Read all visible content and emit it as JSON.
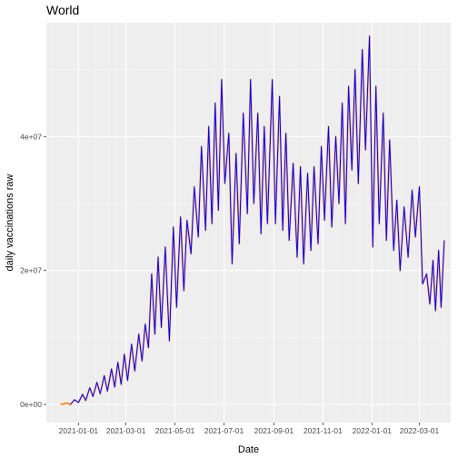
{
  "chart_data": {
    "type": "line",
    "title": "World",
    "xlabel": "Date",
    "ylabel": "daily vaccinations raw",
    "x_tick_labels": [
      "2021-01-01",
      "2021-03-01",
      "2021-05-01",
      "2021-07-01",
      "2021-09-01",
      "2021-11-01",
      "2022-01-01",
      "2022-03-01"
    ],
    "y_tick_labels": [
      "0e+00",
      "2e+07",
      "4e+07"
    ],
    "y_ticks": [
      0,
      20000000,
      40000000
    ],
    "xlim": [
      "2020-11-22",
      "2022-04-09"
    ],
    "ylim": [
      -2700000,
      57000000
    ],
    "grid": true,
    "legend": "none",
    "series": [
      {
        "color": "#0000ff",
        "points": [
          [
            "2020-12-10",
            0
          ],
          [
            "2020-12-18",
            200000
          ],
          [
            "2020-12-22",
            0
          ],
          [
            "2020-12-27",
            700000
          ],
          [
            "2021-01-01",
            300000
          ],
          [
            "2021-01-06",
            1500000
          ],
          [
            "2021-01-10",
            600000
          ],
          [
            "2021-01-15",
            2500000
          ],
          [
            "2021-01-19",
            1200000
          ],
          [
            "2021-01-24",
            3300000
          ],
          [
            "2021-01-28",
            1600000
          ],
          [
            "2021-02-02",
            4300000
          ],
          [
            "2021-02-06",
            2000000
          ],
          [
            "2021-02-11",
            5300000
          ],
          [
            "2021-02-15",
            2600000
          ],
          [
            "2021-02-19",
            6300000
          ],
          [
            "2021-02-23",
            3000000
          ],
          [
            "2021-02-27",
            7500000
          ],
          [
            "2021-03-03",
            3600000
          ],
          [
            "2021-03-08",
            9000000
          ],
          [
            "2021-03-12",
            5000000
          ],
          [
            "2021-03-17",
            10500000
          ],
          [
            "2021-03-21",
            6500000
          ],
          [
            "2021-03-25",
            12000000
          ],
          [
            "2021-03-29",
            8500000
          ],
          [
            "2021-04-02",
            19500000
          ],
          [
            "2021-04-06",
            10500000
          ],
          [
            "2021-04-10",
            22000000
          ],
          [
            "2021-04-14",
            11500000
          ],
          [
            "2021-04-19",
            23500000
          ],
          [
            "2021-04-24",
            9500000
          ],
          [
            "2021-04-29",
            26500000
          ],
          [
            "2021-05-03",
            14500000
          ],
          [
            "2021-05-08",
            28000000
          ],
          [
            "2021-05-12",
            17000000
          ],
          [
            "2021-05-16",
            27500000
          ],
          [
            "2021-05-21",
            22500000
          ],
          [
            "2021-05-25",
            32500000
          ],
          [
            "2021-05-30",
            25000000
          ],
          [
            "2021-06-03",
            38500000
          ],
          [
            "2021-06-08",
            26000000
          ],
          [
            "2021-06-12",
            41500000
          ],
          [
            "2021-06-16",
            27000000
          ],
          [
            "2021-06-20",
            45000000
          ],
          [
            "2021-06-24",
            29000000
          ],
          [
            "2021-06-28",
            48500000
          ],
          [
            "2021-07-02",
            33000000
          ],
          [
            "2021-07-07",
            40500000
          ],
          [
            "2021-07-11",
            21000000
          ],
          [
            "2021-07-16",
            37500000
          ],
          [
            "2021-07-20",
            24000000
          ],
          [
            "2021-07-25",
            43500000
          ],
          [
            "2021-07-30",
            28500000
          ],
          [
            "2021-08-03",
            48500000
          ],
          [
            "2021-08-07",
            30000000
          ],
          [
            "2021-08-12",
            43500000
          ],
          [
            "2021-08-16",
            25500000
          ],
          [
            "2021-08-20",
            41500000
          ],
          [
            "2021-08-24",
            27000000
          ],
          [
            "2021-08-30",
            48500000
          ],
          [
            "2021-09-03",
            27000000
          ],
          [
            "2021-09-08",
            46000000
          ],
          [
            "2021-09-12",
            26000000
          ],
          [
            "2021-09-16",
            40500000
          ],
          [
            "2021-09-20",
            24500000
          ],
          [
            "2021-09-25",
            36000000
          ],
          [
            "2021-09-30",
            22000000
          ],
          [
            "2021-10-04",
            35500000
          ],
          [
            "2021-10-08",
            21000000
          ],
          [
            "2021-10-13",
            34500000
          ],
          [
            "2021-10-17",
            23000000
          ],
          [
            "2021-10-21",
            35500000
          ],
          [
            "2021-10-26",
            24000000
          ],
          [
            "2021-10-30",
            38500000
          ],
          [
            "2021-11-03",
            27500000
          ],
          [
            "2021-11-08",
            41500000
          ],
          [
            "2021-11-12",
            26500000
          ],
          [
            "2021-11-17",
            40000000
          ],
          [
            "2021-11-21",
            30000000
          ],
          [
            "2021-11-25",
            45000000
          ],
          [
            "2021-11-29",
            27000000
          ],
          [
            "2021-12-03",
            47500000
          ],
          [
            "2021-12-07",
            35000000
          ],
          [
            "2021-12-11",
            50000000
          ],
          [
            "2021-12-15",
            33000000
          ],
          [
            "2021-12-20",
            53000000
          ],
          [
            "2021-12-24",
            38000000
          ],
          [
            "2021-12-29",
            55000000
          ],
          [
            "2022-01-02",
            23500000
          ],
          [
            "2022-01-06",
            47500000
          ],
          [
            "2022-01-10",
            27000000
          ],
          [
            "2022-01-15",
            43500000
          ],
          [
            "2022-01-19",
            24500000
          ],
          [
            "2022-01-23",
            39500000
          ],
          [
            "2022-01-28",
            23000000
          ],
          [
            "2022-02-01",
            30500000
          ],
          [
            "2022-02-05",
            20000000
          ],
          [
            "2022-02-10",
            29500000
          ],
          [
            "2022-02-15",
            22000000
          ],
          [
            "2022-02-20",
            32000000
          ],
          [
            "2022-02-24",
            25000000
          ],
          [
            "2022-03-01",
            32500000
          ],
          [
            "2022-03-05",
            18000000
          ],
          [
            "2022-03-10",
            19500000
          ],
          [
            "2022-03-14",
            15000000
          ],
          [
            "2022-03-18",
            21500000
          ],
          [
            "2022-03-21",
            14000000
          ],
          [
            "2022-03-25",
            23000000
          ],
          [
            "2022-03-28",
            14500000
          ],
          [
            "2022-04-01",
            24500000
          ]
        ]
      }
    ]
  }
}
